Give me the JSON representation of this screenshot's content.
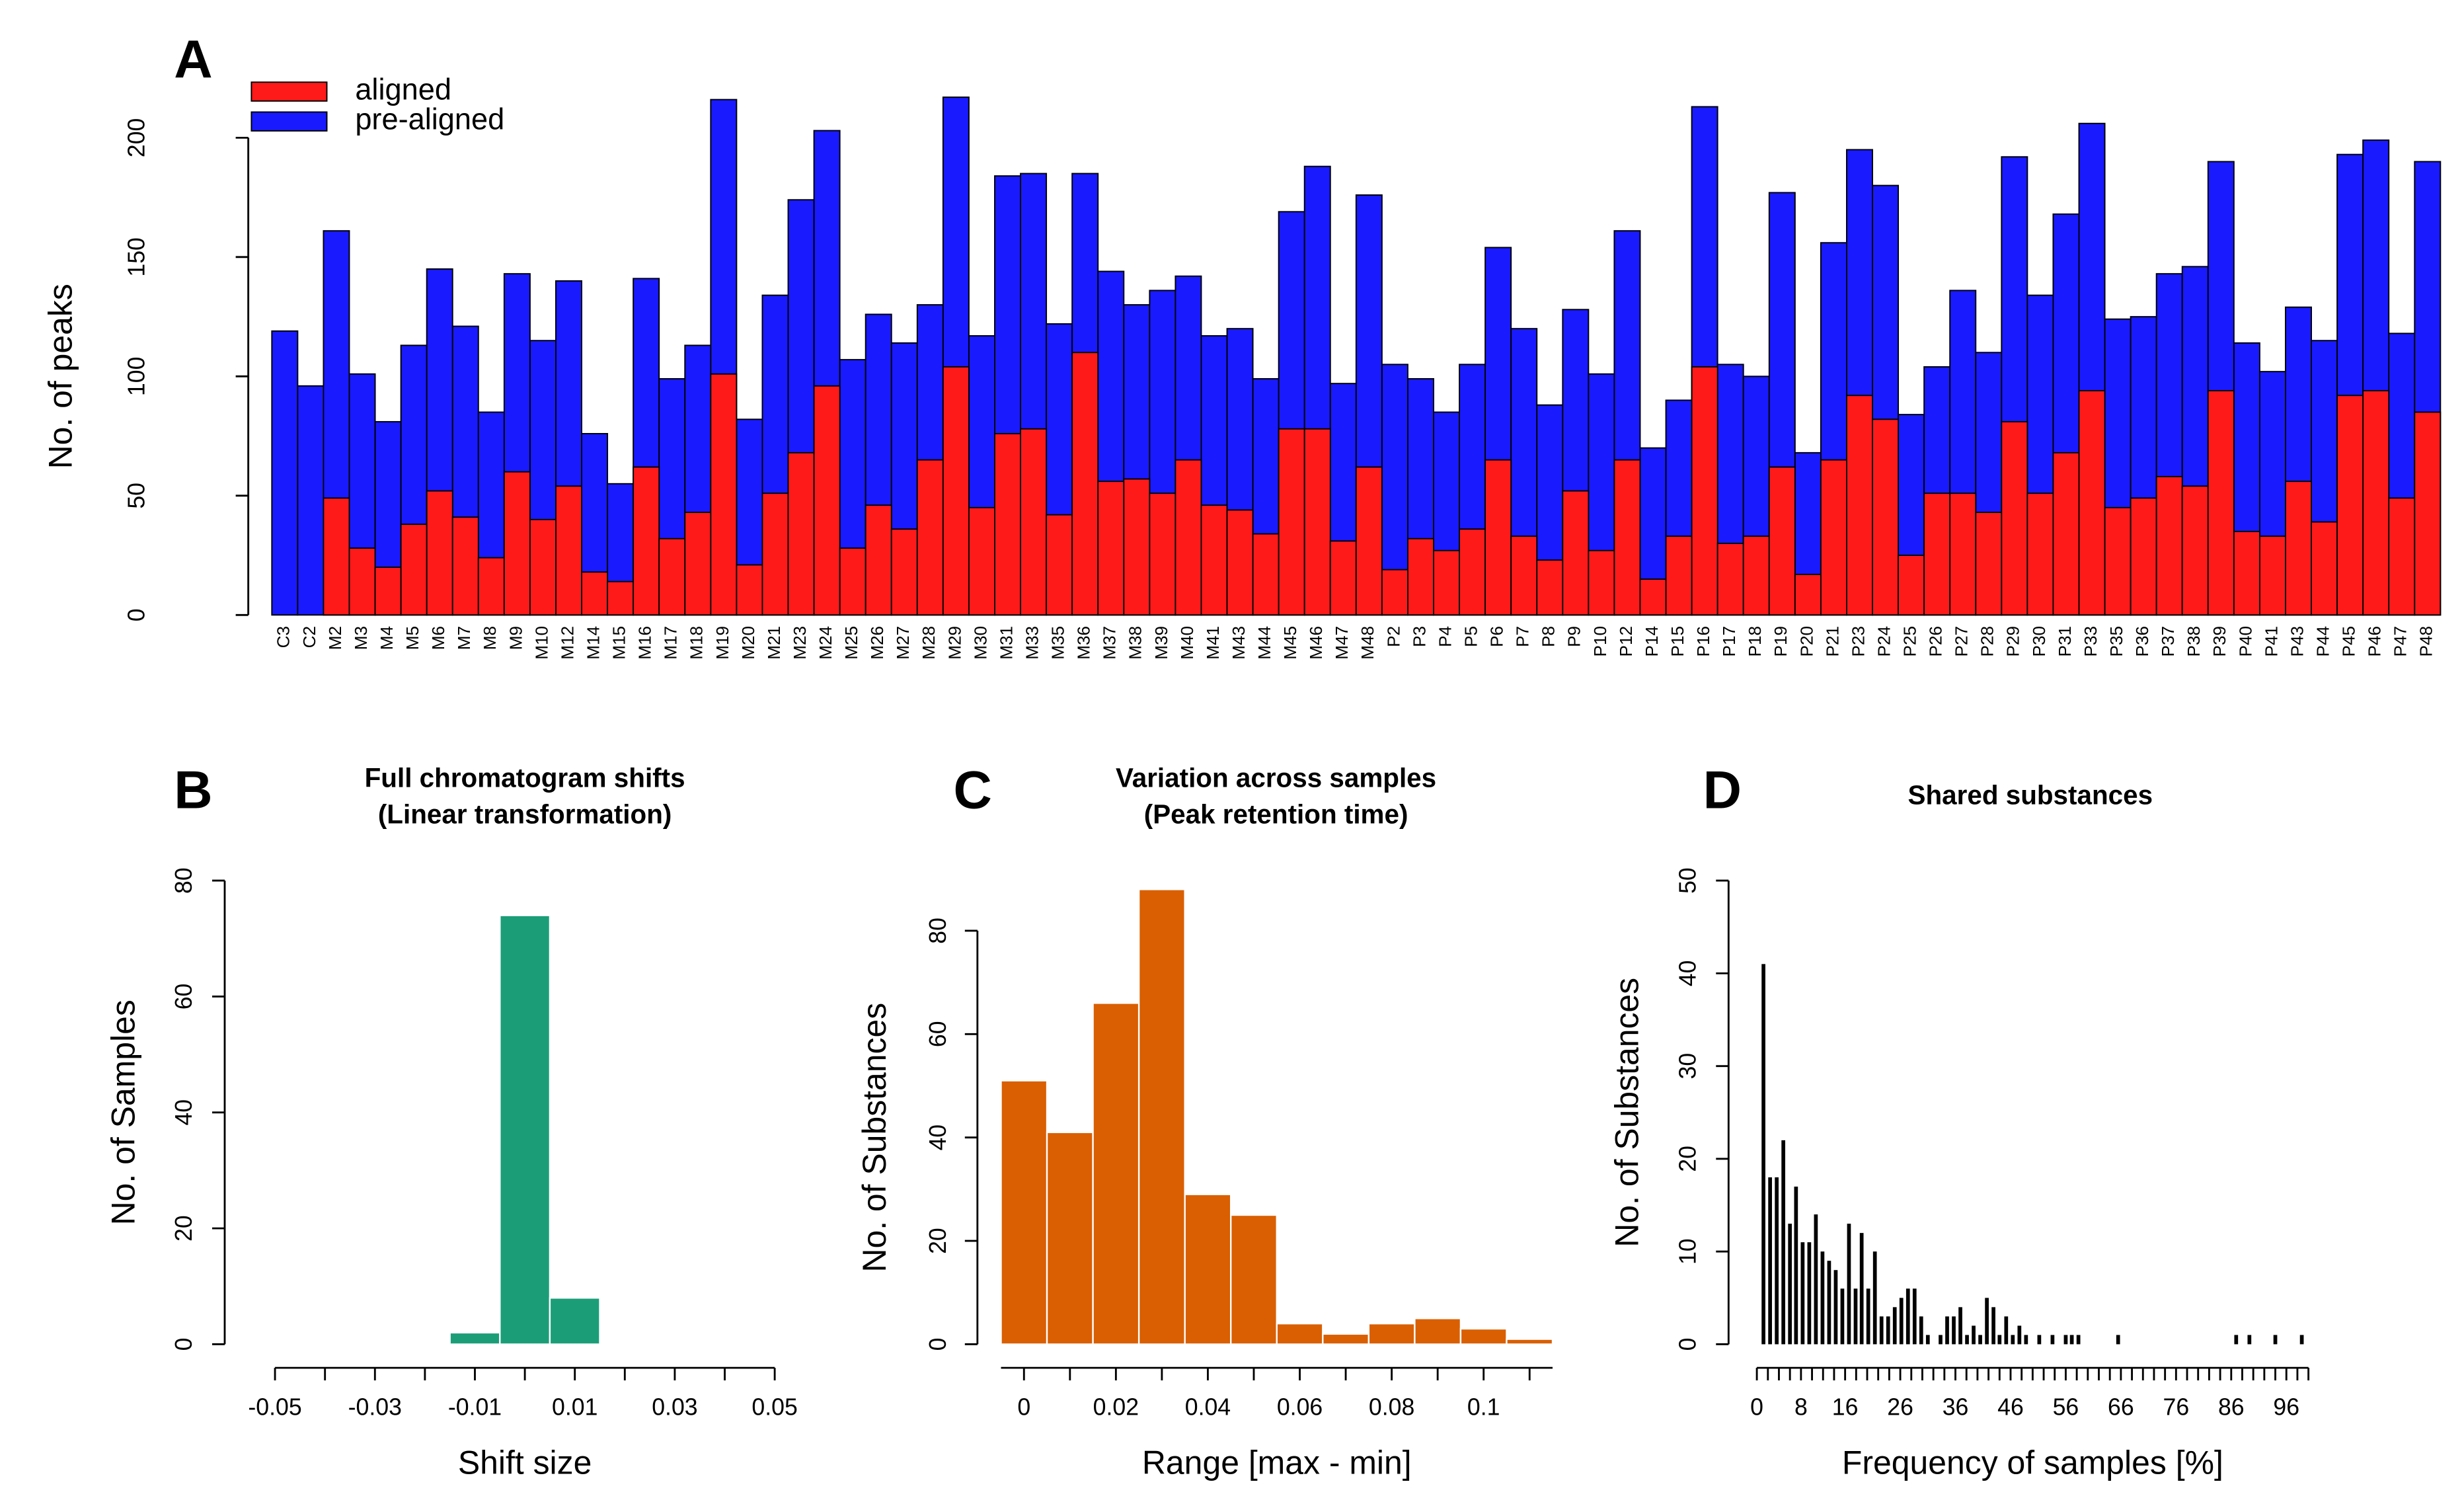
{
  "chart_data": [
    {
      "panel": "A",
      "type": "bar",
      "ylabel": "No. of peaks",
      "categories": [
        "C3",
        "C2",
        "M2",
        "M3",
        "M4",
        "M5",
        "M6",
        "M7",
        "M8",
        "M9",
        "M10",
        "M12",
        "M14",
        "M15",
        "M16",
        "M17",
        "M18",
        "M19",
        "M20",
        "M21",
        "M23",
        "M24",
        "M25",
        "M26",
        "M27",
        "M28",
        "M29",
        "M30",
        "M31",
        "M33",
        "M35",
        "M36",
        "M37",
        "M38",
        "M39",
        "M40",
        "M41",
        "M43",
        "M44",
        "M45",
        "M46",
        "M47",
        "M48",
        "P2",
        "P3",
        "P4",
        "P5",
        "P6",
        "P7",
        "P8",
        "P9",
        "P10",
        "P12",
        "P14",
        "P15",
        "P16",
        "P17",
        "P18",
        "P19",
        "P20",
        "P21",
        "P23",
        "P24",
        "P25",
        "P26",
        "P27",
        "P28",
        "P29",
        "P30",
        "P31",
        "P33",
        "P35",
        "P36",
        "P37",
        "P38",
        "P39",
        "P40",
        "P41",
        "P43",
        "P44",
        "P45",
        "P46",
        "P47",
        "P48"
      ],
      "series": [
        {
          "name": "aligned",
          "color": "#ff1a1a",
          "values": [
            0,
            0,
            49,
            28,
            20,
            38,
            52,
            41,
            24,
            60,
            40,
            54,
            18,
            14,
            62,
            32,
            43,
            101,
            21,
            51,
            68,
            96,
            28,
            46,
            36,
            65,
            104,
            45,
            76,
            78,
            42,
            110,
            56,
            57,
            51,
            65,
            46,
            44,
            34,
            78,
            78,
            31,
            62,
            19,
            32,
            27,
            36,
            65,
            33,
            23,
            52,
            27,
            65,
            15,
            33,
            104,
            30,
            33,
            62,
            17,
            65,
            92,
            82,
            25,
            51,
            51,
            43,
            81,
            51,
            68,
            94,
            45,
            49,
            58,
            54,
            94,
            35,
            33,
            56,
            39,
            92,
            94,
            49,
            85
          ]
        },
        {
          "name": "pre-aligned",
          "color": "#1a1aff",
          "values": [
            119,
            96,
            161,
            101,
            81,
            113,
            145,
            121,
            85,
            143,
            115,
            140,
            76,
            55,
            141,
            99,
            113,
            216,
            82,
            134,
            174,
            203,
            107,
            126,
            114,
            130,
            217,
            117,
            184,
            185,
            122,
            185,
            144,
            130,
            136,
            142,
            117,
            120,
            99,
            169,
            188,
            97,
            176,
            105,
            99,
            85,
            105,
            154,
            120,
            88,
            128,
            101,
            161,
            70,
            90,
            213,
            105,
            100,
            177,
            68,
            156,
            195,
            180,
            84,
            104,
            136,
            110,
            192,
            134,
            168,
            206,
            124,
            125,
            143,
            146,
            190,
            114,
            102,
            129,
            115,
            193,
            199,
            118,
            190
          ]
        }
      ],
      "ylim": [
        0,
        220
      ],
      "yticks": [
        0,
        50,
        100,
        150,
        200
      ],
      "legend": "top-left"
    },
    {
      "panel": "B",
      "type": "histogram",
      "title": [
        "Full chromatogram shifts",
        "(Linear transformation)"
      ],
      "xlabel": "Shift size",
      "ylabel": "No. of Samples",
      "bins": [
        -0.015,
        -0.005,
        0.005,
        0.015
      ],
      "values": [
        2,
        74,
        8
      ],
      "color": "#1b9e77",
      "xlim": [
        -0.05,
        0.05
      ],
      "xticks": [
        -0.05,
        -0.03,
        -0.01,
        0.01,
        0.03,
        0.05
      ],
      "xminorticks": [
        -0.04,
        -0.02,
        0,
        0.02,
        0.04
      ],
      "ylim": [
        0,
        80
      ],
      "yticks": [
        0,
        20,
        40,
        60,
        80
      ]
    },
    {
      "panel": "C",
      "type": "histogram",
      "title": [
        "Variation across samples",
        "(Peak retention time)"
      ],
      "xlabel": "Range [max - min]",
      "ylabel": "No. of Substances",
      "bins": [
        -0.005,
        0.005,
        0.015,
        0.025,
        0.035,
        0.045,
        0.055,
        0.065,
        0.075,
        0.085,
        0.095,
        0.105,
        0.115
      ],
      "values": [
        51,
        41,
        66,
        88,
        29,
        25,
        4,
        2,
        4,
        5,
        3,
        1
      ],
      "color": "#d95f02",
      "xlim": [
        -0.005,
        0.115
      ],
      "xticks": [
        0,
        0.02,
        0.04,
        0.06,
        0.08,
        0.1
      ],
      "xminorticks": [
        0.01,
        0.03,
        0.05,
        0.07,
        0.09,
        0.11
      ],
      "ylim": [
        0,
        90
      ],
      "yticks": [
        0,
        20,
        40,
        60,
        80
      ]
    },
    {
      "panel": "D",
      "type": "spike",
      "title": [
        "Shared substances"
      ],
      "xlabel": "Frequency of samples [%]",
      "ylabel": "No. of Substances",
      "x": [
        1.2,
        2.4,
        3.6,
        4.8,
        6,
        7.1,
        8.3,
        9.5,
        10.7,
        11.9,
        13.1,
        14.3,
        15.5,
        16.7,
        17.9,
        19,
        20.2,
        21.4,
        22.6,
        23.8,
        25,
        26.2,
        27.4,
        28.6,
        29.8,
        31,
        33.3,
        34.5,
        35.7,
        36.9,
        38.1,
        39.3,
        40.5,
        41.7,
        42.9,
        44,
        45.2,
        46.4,
        47.6,
        48.8,
        51.2,
        53.6,
        56,
        57.1,
        58.3,
        65.5,
        86.9,
        89.3,
        94,
        98.8
      ],
      "values": [
        41,
        18,
        18,
        22,
        13,
        17,
        11,
        11,
        14,
        10,
        9,
        8,
        6,
        13,
        6,
        12,
        6,
        10,
        3,
        3,
        4,
        5,
        6,
        6,
        3,
        1,
        1,
        3,
        3,
        4,
        1,
        2,
        1,
        5,
        4,
        1,
        3,
        1,
        2,
        1,
        1,
        1,
        1,
        1,
        1,
        1,
        1,
        1,
        1,
        1
      ],
      "color": "#000000",
      "xlim": [
        0,
        100
      ],
      "xticks": [
        0,
        8,
        16,
        26,
        36,
        46,
        56,
        66,
        76,
        86,
        96
      ],
      "xminorticks": [
        2,
        4,
        6,
        10,
        12,
        14,
        18,
        20,
        22,
        24,
        28,
        30,
        32,
        34,
        38,
        40,
        42,
        44,
        48,
        50,
        52,
        54,
        58,
        60,
        62,
        64,
        68,
        70,
        72,
        74,
        78,
        80,
        82,
        84,
        88,
        90,
        92,
        94,
        98,
        100
      ],
      "ylim": [
        0,
        50
      ],
      "yticks": [
        0,
        10,
        20,
        30,
        40,
        50
      ]
    }
  ]
}
